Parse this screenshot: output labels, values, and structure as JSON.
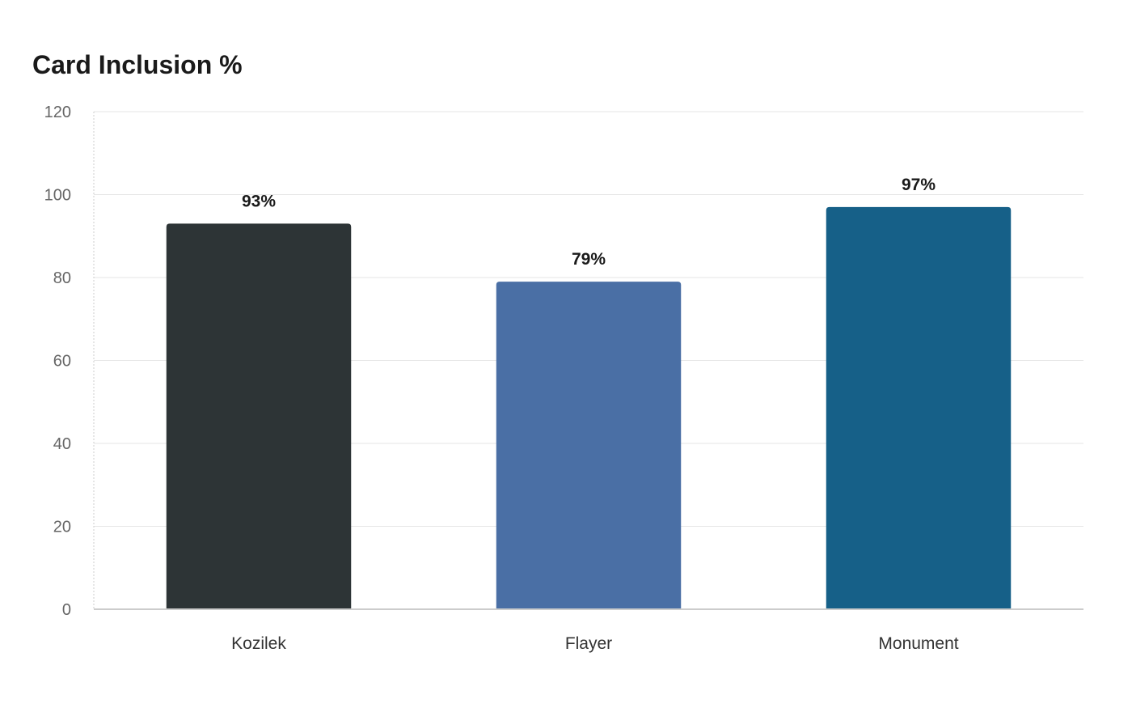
{
  "chart_data": {
    "type": "bar",
    "title": "Card Inclusion %",
    "categories": [
      "Kozilek",
      "Flayer",
      "Monument"
    ],
    "values": [
      93,
      79,
      97
    ],
    "data_labels": [
      "93%",
      "79%",
      "97%"
    ],
    "colors": [
      "#2d3436",
      "#4a6fa5",
      "#166088"
    ],
    "ylim": [
      0,
      120
    ],
    "yticks": [
      0,
      20,
      40,
      60,
      80,
      100,
      120
    ],
    "xlabel": "",
    "ylabel": "",
    "grid": true,
    "legend": "none"
  }
}
